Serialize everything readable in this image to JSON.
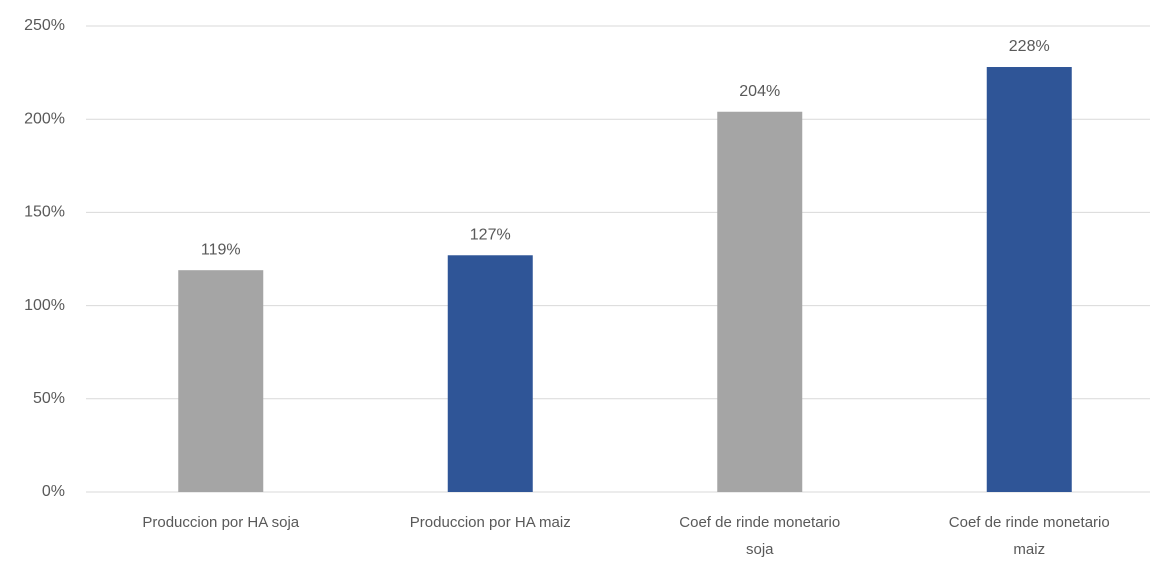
{
  "chart_data": {
    "type": "bar",
    "categories": [
      "Produccion por HA soja",
      "Produccion por HA maiz",
      "Coef de rinde monetario soja",
      "Coef de rinde monetario maiz"
    ],
    "values": [
      119,
      127,
      204,
      228
    ],
    "value_labels": [
      "119%",
      "127%",
      "204%",
      "228%"
    ],
    "colors": [
      "#a5a5a5",
      "#2f5597",
      "#a5a5a5",
      "#2f5597"
    ],
    "ylim": [
      0,
      250
    ],
    "yticks": [
      {
        "value": 0,
        "label": "0%"
      },
      {
        "value": 50,
        "label": "50%"
      },
      {
        "value": 100,
        "label": "100%"
      },
      {
        "value": 150,
        "label": "150%"
      },
      {
        "value": 200,
        "label": "200%"
      },
      {
        "value": 250,
        "label": "250%"
      }
    ],
    "grid": true
  }
}
